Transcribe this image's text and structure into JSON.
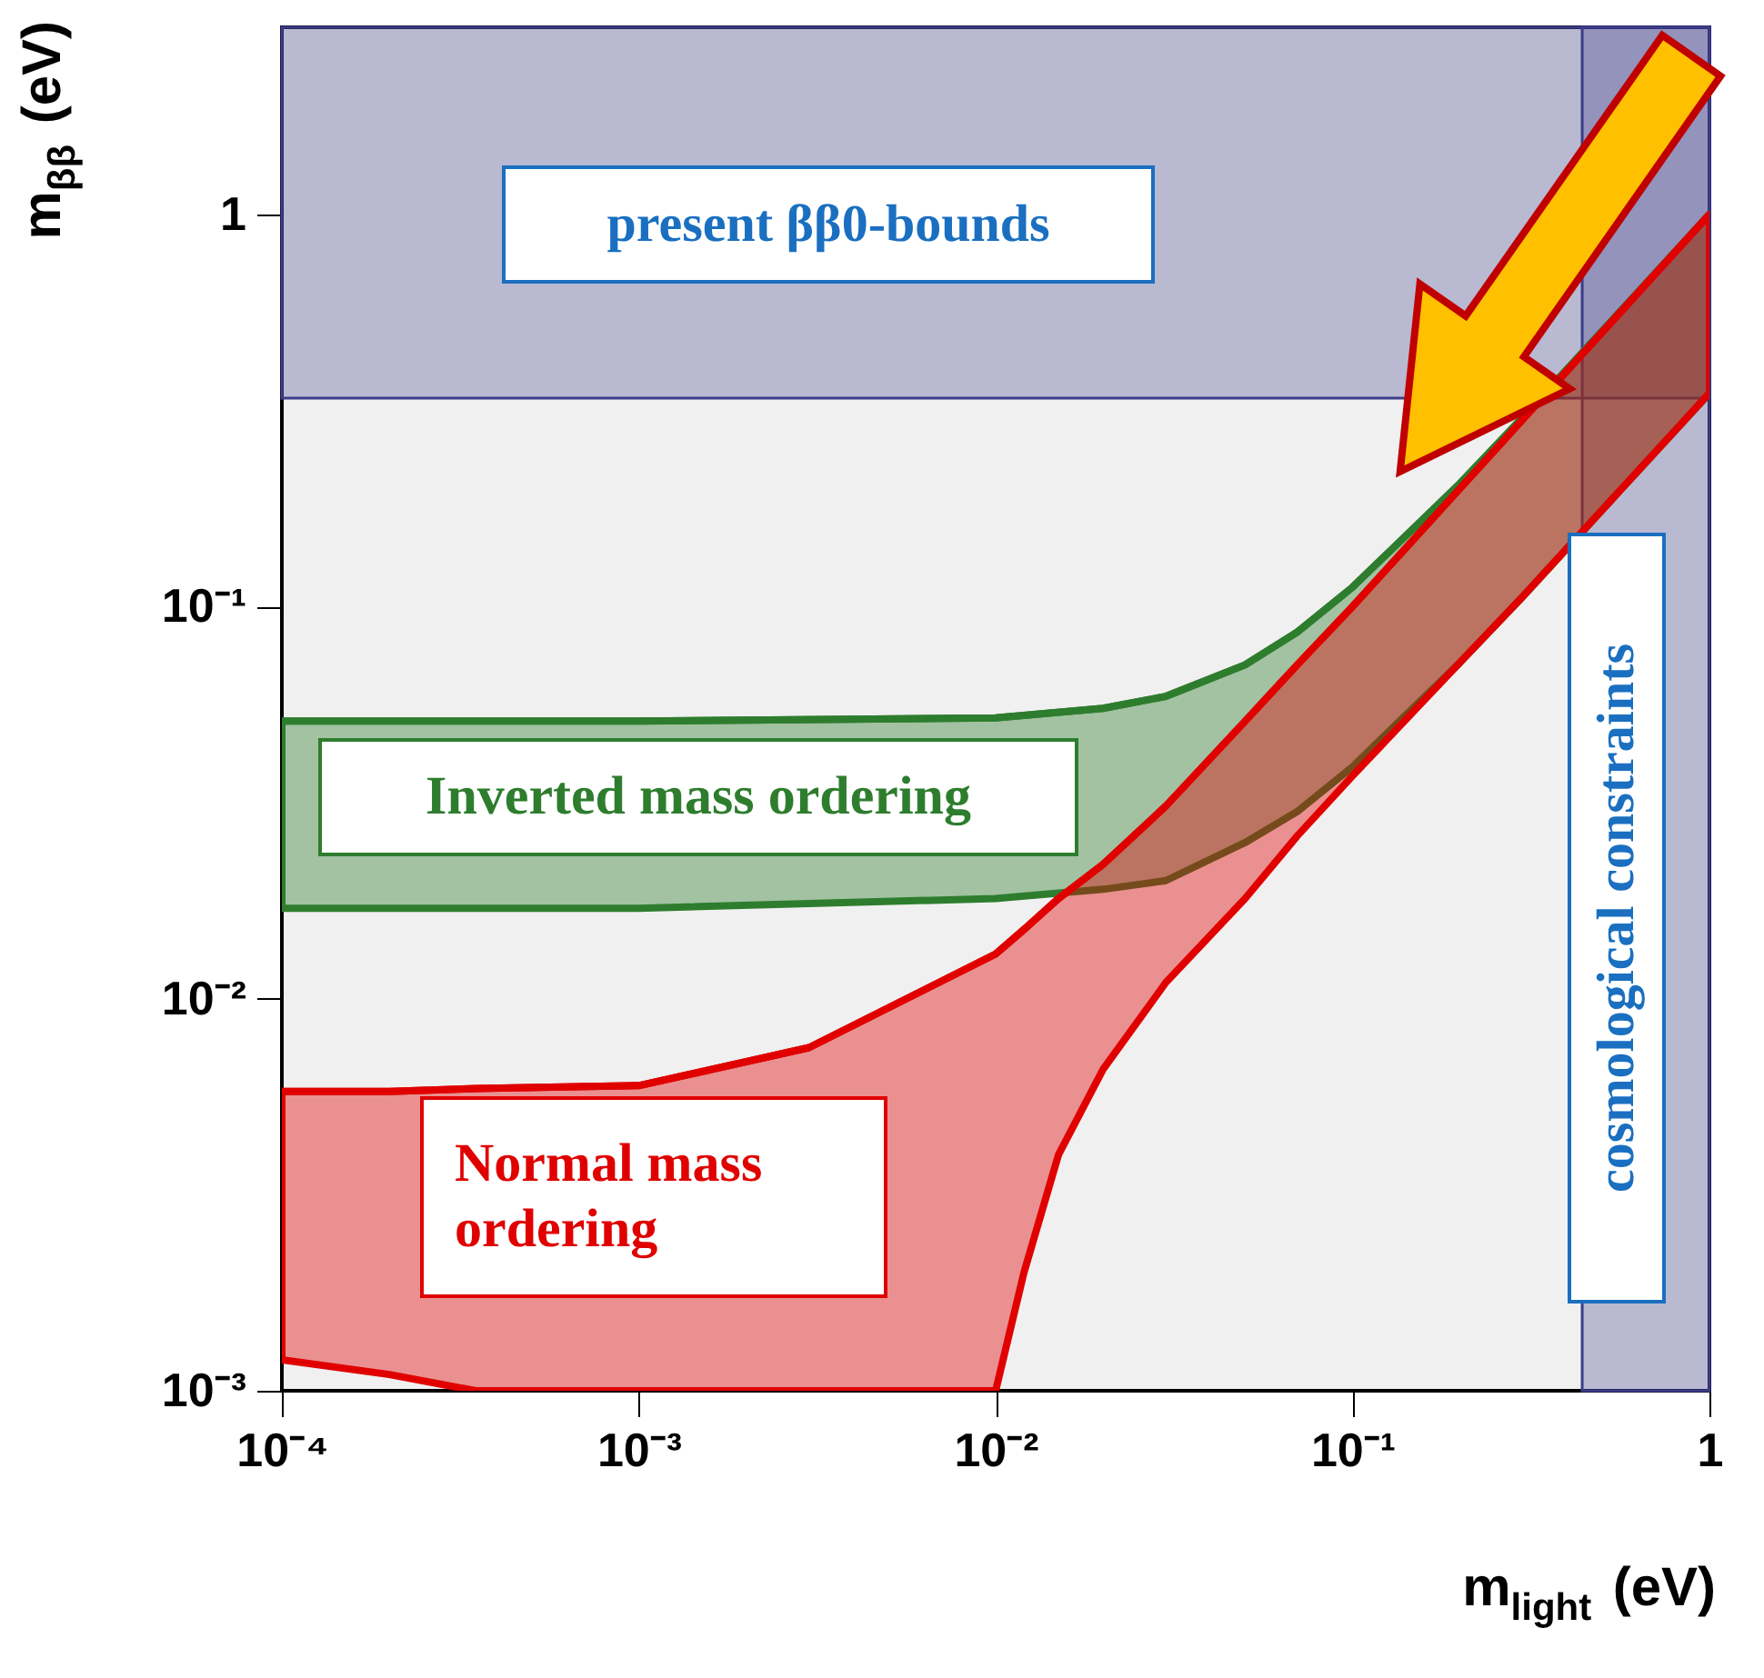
{
  "chart_data": {
    "type": "line",
    "xlabel": "m$_{light}$ (eV)",
    "ylabel": "m$_{ββ}$ (eV)",
    "log": "xy",
    "grid": false,
    "xlim": [
      0.0001,
      1
    ],
    "ylim": [
      0.001,
      3
    ],
    "xticks": [
      {
        "value": 0.0001,
        "label": "10⁻⁴"
      },
      {
        "value": 0.001,
        "label": "10⁻³"
      },
      {
        "value": 0.01,
        "label": "10⁻²"
      },
      {
        "value": 0.1,
        "label": "10⁻¹"
      },
      1
    ],
    "yticks": [
      {
        "value": 0.001,
        "label": "10⁻³"
      },
      {
        "value": 0.01,
        "label": "10⁻²"
      },
      {
        "value": 0.1,
        "label": "10⁻¹"
      },
      1
    ],
    "bands": [
      {
        "axis": "y",
        "from": 0.34,
        "to": 3,
        "label": "present ββ0-bounds",
        "color": "#3c3c8c"
      },
      {
        "axis": "x",
        "from": 0.44,
        "to": 1,
        "label": "cosmological constraints",
        "color": "#3c3c8c"
      }
    ],
    "series": [
      {
        "name": "Inverted mass ordering",
        "color": "#2e7d2e",
        "x": [
          0.0001,
          0.001,
          0.01,
          0.02,
          0.03,
          0.05,
          0.07,
          0.1,
          0.2,
          0.3,
          0.5,
          1
        ],
        "values": [
          0.051,
          0.051,
          0.052,
          0.055,
          0.059,
          0.071,
          0.086,
          0.112,
          0.206,
          0.304,
          0.503,
          1.0
        ],
        "upper": [
          0.051,
          0.051,
          0.052,
          0.055,
          0.059,
          0.071,
          0.086,
          0.112,
          0.206,
          0.304,
          0.503,
          1.0
        ],
        "lower": [
          0.017,
          0.017,
          0.018,
          0.019,
          0.02,
          0.025,
          0.03,
          0.039,
          0.072,
          0.106,
          0.176,
          0.35
        ]
      },
      {
        "name": "Normal mass ordering",
        "color": "#e00000",
        "x": [
          0.0001,
          0.0002,
          0.00035,
          0.001,
          0.003,
          0.01,
          0.012,
          0.015,
          0.02,
          0.03,
          0.05,
          0.07,
          0.1,
          0.2,
          0.3,
          0.5,
          1
        ],
        "values": [
          0.0058,
          0.0058,
          0.0059,
          0.006,
          0.0075,
          0.013,
          0.015,
          0.018,
          0.022,
          0.031,
          0.051,
          0.071,
          0.1,
          0.2,
          0.3,
          0.5,
          1.0
        ],
        "upper": [
          0.0058,
          0.0058,
          0.0059,
          0.006,
          0.0075,
          0.013,
          0.015,
          0.018,
          0.022,
          0.031,
          0.051,
          0.071,
          0.1,
          0.2,
          0.3,
          0.5,
          1.0
        ],
        "lower": [
          0.0012,
          0.0011,
          0.001,
          0.001,
          0.001,
          0.001,
          0.002,
          0.004,
          0.0066,
          0.011,
          0.018,
          0.026,
          0.037,
          0.072,
          0.106,
          0.176,
          0.35
        ]
      }
    ]
  }
}
